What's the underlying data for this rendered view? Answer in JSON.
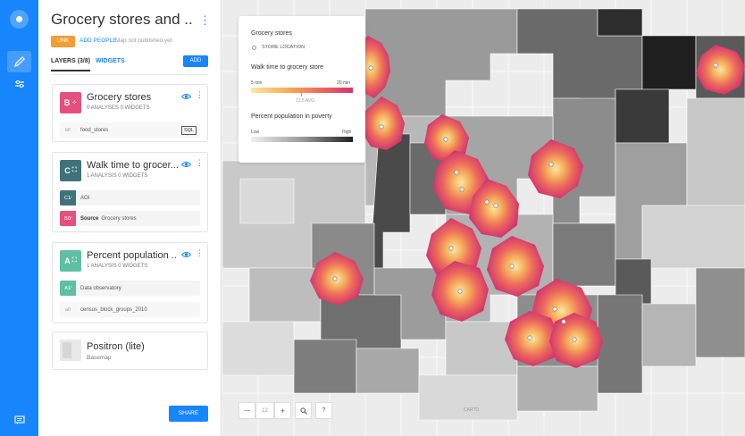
{
  "app": {
    "map_title": "Grocery stores and ...",
    "link_label": "LINK",
    "add_people_label": "ADD PEOPLE",
    "publish_state": "Map not published yet"
  },
  "tabs": {
    "layers_label": "LAYERS (3/8)",
    "widgets_label": "WIDGETS",
    "add_label": "ADD"
  },
  "layers": [
    {
      "badge": "B",
      "color": "#e6507c",
      "name": "Grocery stores",
      "meta": "0 ANALYSES  0 WIDGETS",
      "source_tag": "b0",
      "source_name": "food_stores",
      "query_label": "SQL"
    },
    {
      "badge": "C",
      "color": "#40727c",
      "name": "Walk time to grocer...",
      "meta": "1 ANALYSIS  0 WIDGETS",
      "analyses": [
        {
          "tag": "C1",
          "tag_color": "#40727c",
          "label": "AOI"
        },
        {
          "tag": "B0",
          "tag_color": "#e6507c",
          "label_bold": "Source",
          "label": "Grocery stores"
        }
      ]
    },
    {
      "badge": "A",
      "color": "#5fbfa3",
      "name": "Percent population ...",
      "meta": "1 ANALYSIS  0 WIDGETS",
      "analysis": {
        "tag": "A1",
        "tag_color": "#5fbfa3",
        "label": "Data observatory"
      },
      "source_tag": "a0",
      "source_name": "census_block_groups_2010"
    }
  ],
  "basemap": {
    "name": "Positron (lite)",
    "label": "Basemap"
  },
  "share_label": "SHARE",
  "legend": {
    "section1_title": "Grocery stores",
    "section1_item": "STORE LOCATION",
    "section2_title": "Walk time to grocery store",
    "min_label": "5 min",
    "max_label": "20 min",
    "avg_label": "12.5 AVG",
    "section3_title": "Percent population in poverty",
    "low_label": "Low",
    "high_label": "High"
  },
  "zoom": {
    "minus": "—",
    "level": "12",
    "plus": "+",
    "search_icon": "search-icon",
    "help": "?"
  },
  "credits": "CARTO"
}
